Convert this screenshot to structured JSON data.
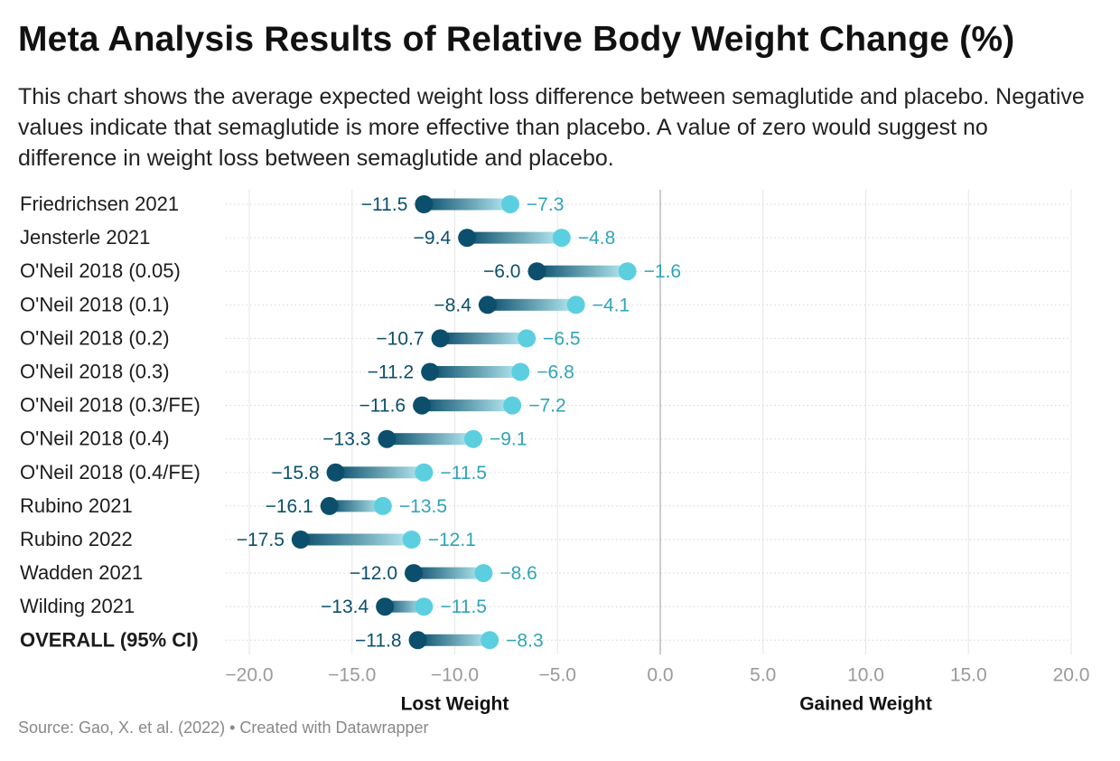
{
  "title": "Meta Analysis Results of Relative Body Weight Change (%)",
  "subtitle": "This chart shows the average expected weight loss difference between semaglutide and placebo. Negative values indicate that semaglutide is more effective than placebo. A value of zero would suggest no difference in weight loss between semaglutide and placebo.",
  "source": "Source: Gao, X. et al. (2022) • Created with Datawrapper",
  "colors": {
    "low_dot": "#0b4f6c",
    "high_dot": "#5bcfe0",
    "low_label": "#0b4f6c",
    "high_label": "#2fa5b7",
    "zero_line": "#bbbbbb",
    "grid": "#e6e6e6",
    "tick_text": "#9a9a9a"
  },
  "chart_data": {
    "type": "range_dot",
    "xlim": [
      -20,
      20
    ],
    "x_ticks": [
      -20,
      -15,
      -10,
      -5,
      0,
      5,
      10,
      15,
      20
    ],
    "x_tick_labels": [
      "−20.0",
      "−15.0",
      "−10.0",
      "−5.0",
      "0.0",
      "5.0",
      "10.0",
      "15.0",
      "20.0"
    ],
    "x_annotations": [
      {
        "label": "Lost Weight",
        "x": -10
      },
      {
        "label": "Gained Weight",
        "x": 10
      }
    ],
    "rows": [
      {
        "label": "Friedrichsen 2021",
        "low": -11.5,
        "high": -7.3,
        "low_label": "−11.5",
        "high_label": "−7.3",
        "bold": false
      },
      {
        "label": "Jensterle 2021",
        "low": -9.4,
        "high": -4.8,
        "low_label": "−9.4",
        "high_label": "−4.8",
        "bold": false
      },
      {
        "label": "O'Neil 2018 (0.05)",
        "low": -6.0,
        "high": -1.6,
        "low_label": "−6.0",
        "high_label": "−1.6",
        "bold": false
      },
      {
        "label": "O'Neil 2018 (0.1)",
        "low": -8.4,
        "high": -4.1,
        "low_label": "−8.4",
        "high_label": "−4.1",
        "bold": false
      },
      {
        "label": "O'Neil 2018 (0.2)",
        "low": -10.7,
        "high": -6.5,
        "low_label": "−10.7",
        "high_label": "−6.5",
        "bold": false
      },
      {
        "label": "O'Neil 2018 (0.3)",
        "low": -11.2,
        "high": -6.8,
        "low_label": "−11.2",
        "high_label": "−6.8",
        "bold": false
      },
      {
        "label": "O'Neil 2018 (0.3/FE)",
        "low": -11.6,
        "high": -7.2,
        "low_label": "−11.6",
        "high_label": "−7.2",
        "bold": false
      },
      {
        "label": "O'Neil 2018 (0.4)",
        "low": -13.3,
        "high": -9.1,
        "low_label": "−13.3",
        "high_label": "−9.1",
        "bold": false
      },
      {
        "label": "O'Neil 2018 (0.4/FE)",
        "low": -15.8,
        "high": -11.5,
        "low_label": "−15.8",
        "high_label": "−11.5",
        "bold": false
      },
      {
        "label": "Rubino 2021",
        "low": -16.1,
        "high": -13.5,
        "low_label": "−16.1",
        "high_label": "−13.5",
        "bold": false
      },
      {
        "label": "Rubino 2022",
        "low": -17.5,
        "high": -12.1,
        "low_label": "−17.5",
        "high_label": "−12.1",
        "bold": false
      },
      {
        "label": "Wadden 2021",
        "low": -12.0,
        "high": -8.6,
        "low_label": "−12.0",
        "high_label": "−8.6",
        "bold": false
      },
      {
        "label": "Wilding 2021",
        "low": -13.4,
        "high": -11.5,
        "low_label": "−13.4",
        "high_label": "−11.5",
        "bold": false
      },
      {
        "label": "OVERALL (95% CI)",
        "low": -11.8,
        "high": -8.3,
        "low_label": "−11.8",
        "high_label": "−8.3",
        "bold": true
      }
    ]
  }
}
